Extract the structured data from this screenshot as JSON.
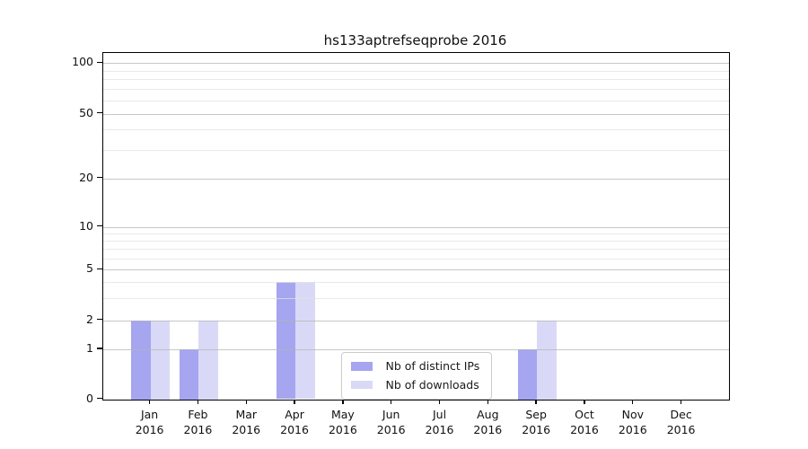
{
  "chart_data": {
    "type": "bar",
    "title": "hs133aptrefseqprobe 2016",
    "categories": [
      "Jan",
      "Feb",
      "Mar",
      "Apr",
      "May",
      "Jun",
      "Jul",
      "Aug",
      "Sep",
      "Oct",
      "Nov",
      "Dec"
    ],
    "category_year": "2016",
    "series": [
      {
        "name": "Nb of distinct IPs",
        "color": "#a5a5f0",
        "values": [
          2,
          1,
          0,
          4,
          0,
          0,
          0,
          0,
          1,
          0,
          0,
          0
        ]
      },
      {
        "name": "Nb of downloads",
        "color": "#d9d9f7",
        "values": [
          2,
          2,
          0,
          4,
          0,
          0,
          0,
          0,
          2,
          0,
          0,
          0
        ]
      }
    ],
    "y_axis": {
      "scale": "log-like",
      "major_ticks": [
        0,
        1,
        2,
        5,
        10,
        20,
        50,
        100
      ],
      "minor_ticks": [
        3,
        4,
        6,
        7,
        8,
        9,
        30,
        40,
        60,
        70,
        80,
        90
      ],
      "ylim": [
        0,
        100
      ],
      "grid": "on"
    },
    "x_axis": {
      "grid": "off"
    },
    "legend": {
      "position": "lower-center",
      "entries": [
        "Nb of distinct IPs",
        "Nb of downloads"
      ]
    },
    "colors": {
      "bar_distinct_ips": "#a5a5f0",
      "bar_downloads": "#d9d9f7",
      "grid_major": "#b4b4b4",
      "grid_minor": "#e1e1e1",
      "spine": "#000000",
      "text": "#111111"
    }
  }
}
